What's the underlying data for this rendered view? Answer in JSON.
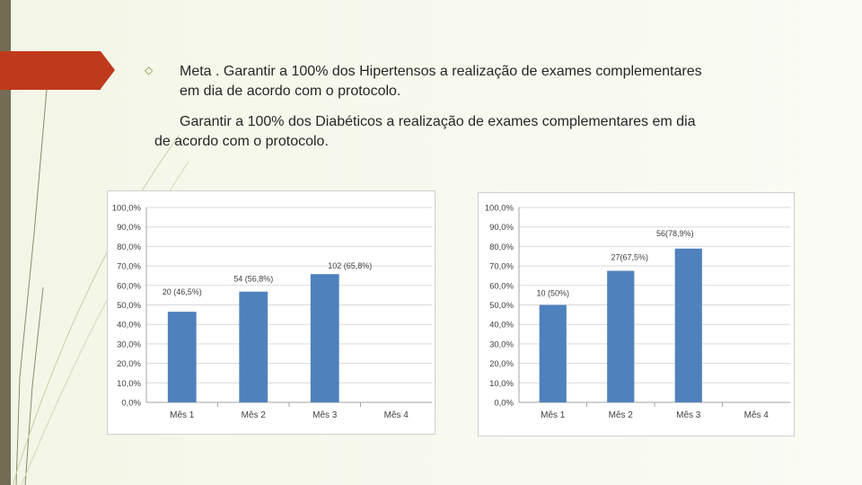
{
  "slide": {
    "bullet_icon": "diamond-outline-icon",
    "bullet1_line1": "Meta . Garantir a 100% dos Hipertensos a realização de exames complementares",
    "bullet1_line2": "em dia de acordo com o protocolo.",
    "para2_line1": "Garantir a 100% dos Diabéticos a realização de exames complementares em dia",
    "para2_line2": "de acordo com o protocolo."
  },
  "colors": {
    "bar": "#4f81bd",
    "accent": "#bf3a1c",
    "band": "#736c53"
  },
  "chart_data": [
    {
      "type": "bar",
      "categories": [
        "Mês 1",
        "Mês 2",
        "Mês 3",
        "Mês 4"
      ],
      "values": [
        46.5,
        56.8,
        65.8,
        0
      ],
      "data_labels": [
        "20 (46,5%)",
        "54 (56,8%)",
        "102 (65,8%)",
        ""
      ],
      "y_ticks": [
        "0,0%",
        "10,0%",
        "20,0%",
        "30,0%",
        "40,0%",
        "50,0%",
        "60,0%",
        "70,0%",
        "80,0%",
        "90,0%",
        "100,0%"
      ],
      "ylim": [
        0,
        100
      ],
      "grid": true
    },
    {
      "type": "bar",
      "categories": [
        "Mês 1",
        "Mês 2",
        "Mês 3",
        "Mês 4"
      ],
      "values": [
        50,
        67.5,
        78.9,
        0
      ],
      "data_labels": [
        "10 (50%)",
        "27(67,5%)",
        "56(78,9%)",
        ""
      ],
      "y_ticks": [
        "0,0%",
        "10,0%",
        "20,0%",
        "30,0%",
        "40,0%",
        "50,0%",
        "60,0%",
        "70,0%",
        "80,0%",
        "90,0%",
        "100,0%"
      ],
      "ylim": [
        0,
        100
      ],
      "grid": true
    }
  ]
}
